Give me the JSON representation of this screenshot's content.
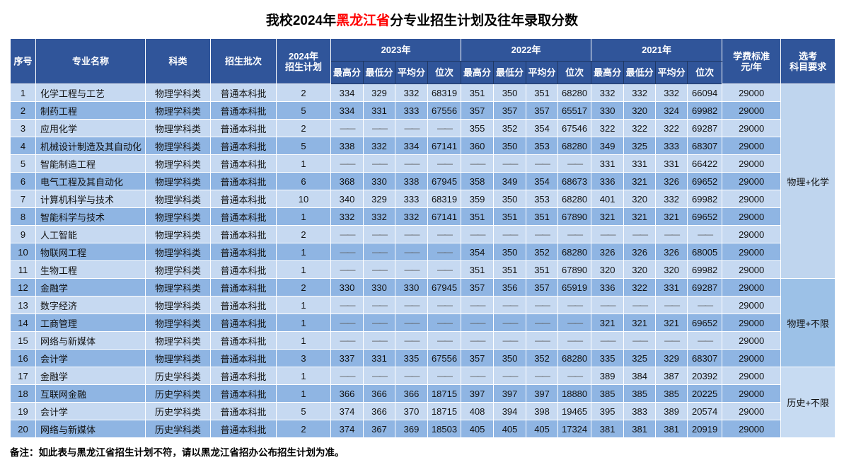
{
  "title": {
    "prefix": "我校2024年",
    "highlight": "黑龙江省",
    "suffix": "分专业招生计划及往年录取分数"
  },
  "header": {
    "seq": "序号",
    "major": "专业名称",
    "category": "科类",
    "batch": "招生批次",
    "plan_line1": "2024年",
    "plan_line2": "招生计划",
    "years": [
      "2023年",
      "2022年",
      "2021年"
    ],
    "sub_labels": [
      "最高分",
      "最低分",
      "平均分",
      "位次"
    ],
    "tuition_line1": "学费标准",
    "tuition_line2": "元/年",
    "subjects_line1": "选考",
    "subjects_line2": "科目要求"
  },
  "subject_groups": [
    {
      "label": "物理+化学",
      "span": 11
    },
    {
      "label": "物理+不限",
      "span": 5
    },
    {
      "label": "历史+不限",
      "span": 4
    }
  ],
  "rows": [
    {
      "seq": "1",
      "major": "化学工程与工艺",
      "category": "物理学科类",
      "batch": "普通本科批",
      "plan": "2",
      "scores": [
        "334",
        "329",
        "332",
        "68319",
        "351",
        "350",
        "351",
        "68280",
        "332",
        "332",
        "332",
        "66094"
      ],
      "tuition": "29000"
    },
    {
      "seq": "2",
      "major": "制药工程",
      "category": "物理学科类",
      "batch": "普通本科批",
      "plan": "5",
      "scores": [
        "334",
        "331",
        "333",
        "67556",
        "357",
        "357",
        "357",
        "65517",
        "330",
        "320",
        "324",
        "69982"
      ],
      "tuition": "29000"
    },
    {
      "seq": "3",
      "major": "应用化学",
      "category": "物理学科类",
      "batch": "普通本科批",
      "plan": "2",
      "scores": [
        "——",
        "——",
        "——",
        "——",
        "355",
        "352",
        "354",
        "67546",
        "322",
        "322",
        "322",
        "69287"
      ],
      "tuition": "29000"
    },
    {
      "seq": "4",
      "major": "机械设计制造及其自动化",
      "category": "物理学科类",
      "batch": "普通本科批",
      "plan": "5",
      "scores": [
        "338",
        "332",
        "334",
        "67141",
        "360",
        "350",
        "353",
        "68280",
        "349",
        "325",
        "333",
        "68307"
      ],
      "tuition": "29000"
    },
    {
      "seq": "5",
      "major": "智能制造工程",
      "category": "物理学科类",
      "batch": "普通本科批",
      "plan": "1",
      "scores": [
        "——",
        "——",
        "——",
        "——",
        "——",
        "——",
        "——",
        "——",
        "331",
        "331",
        "331",
        "66422"
      ],
      "tuition": "29000"
    },
    {
      "seq": "6",
      "major": "电气工程及其自动化",
      "category": "物理学科类",
      "batch": "普通本科批",
      "plan": "6",
      "scores": [
        "368",
        "330",
        "338",
        "67945",
        "358",
        "349",
        "354",
        "68673",
        "336",
        "321",
        "326",
        "69652"
      ],
      "tuition": "29000"
    },
    {
      "seq": "7",
      "major": "计算机科学与技术",
      "category": "物理学科类",
      "batch": "普通本科批",
      "plan": "10",
      "scores": [
        "340",
        "329",
        "333",
        "68319",
        "359",
        "350",
        "353",
        "68280",
        "401",
        "320",
        "332",
        "69982"
      ],
      "tuition": "29000"
    },
    {
      "seq": "8",
      "major": "智能科学与技术",
      "category": "物理学科类",
      "batch": "普通本科批",
      "plan": "1",
      "scores": [
        "332",
        "332",
        "332",
        "67141",
        "351",
        "351",
        "351",
        "67890",
        "321",
        "321",
        "321",
        "69652"
      ],
      "tuition": "29000"
    },
    {
      "seq": "9",
      "major": "人工智能",
      "category": "物理学科类",
      "batch": "普通本科批",
      "plan": "2",
      "scores": [
        "——",
        "——",
        "——",
        "——",
        "——",
        "——",
        "——",
        "——",
        "——",
        "——",
        "——",
        "——"
      ],
      "tuition": "29000"
    },
    {
      "seq": "10",
      "major": "物联网工程",
      "category": "物理学科类",
      "batch": "普通本科批",
      "plan": "1",
      "scores": [
        "——",
        "——",
        "——",
        "——",
        "354",
        "350",
        "352",
        "68280",
        "326",
        "326",
        "326",
        "68005"
      ],
      "tuition": "29000"
    },
    {
      "seq": "11",
      "major": "生物工程",
      "category": "物理学科类",
      "batch": "普通本科批",
      "plan": "1",
      "scores": [
        "——",
        "——",
        "——",
        "——",
        "351",
        "351",
        "351",
        "67890",
        "320",
        "320",
        "320",
        "69982"
      ],
      "tuition": "29000"
    },
    {
      "seq": "12",
      "major": "金融学",
      "category": "物理学科类",
      "batch": "普通本科批",
      "plan": "2",
      "scores": [
        "330",
        "330",
        "330",
        "67945",
        "357",
        "356",
        "357",
        "65919",
        "336",
        "322",
        "331",
        "69287"
      ],
      "tuition": "29000"
    },
    {
      "seq": "13",
      "major": "数字经济",
      "category": "物理学科类",
      "batch": "普通本科批",
      "plan": "1",
      "scores": [
        "——",
        "——",
        "——",
        "——",
        "——",
        "——",
        "——",
        "——",
        "——",
        "——",
        "——",
        "——"
      ],
      "tuition": "29000"
    },
    {
      "seq": "14",
      "major": "工商管理",
      "category": "物理学科类",
      "batch": "普通本科批",
      "plan": "1",
      "scores": [
        "——",
        "——",
        "——",
        "——",
        "——",
        "——",
        "——",
        "——",
        "321",
        "321",
        "321",
        "69652"
      ],
      "tuition": "29000"
    },
    {
      "seq": "15",
      "major": "网络与新媒体",
      "category": "物理学科类",
      "batch": "普通本科批",
      "plan": "1",
      "scores": [
        "——",
        "——",
        "——",
        "——",
        "——",
        "——",
        "——",
        "——",
        "——",
        "——",
        "——",
        "——"
      ],
      "tuition": "29000"
    },
    {
      "seq": "16",
      "major": "会计学",
      "category": "物理学科类",
      "batch": "普通本科批",
      "plan": "3",
      "scores": [
        "337",
        "331",
        "335",
        "67556",
        "357",
        "350",
        "352",
        "68280",
        "335",
        "325",
        "329",
        "68307"
      ],
      "tuition": "29000"
    },
    {
      "seq": "17",
      "major": "金融学",
      "category": "历史学科类",
      "batch": "普通本科批",
      "plan": "1",
      "scores": [
        "——",
        "——",
        "——",
        "——",
        "——",
        "——",
        "——",
        "——",
        "389",
        "384",
        "387",
        "20392"
      ],
      "tuition": "29000"
    },
    {
      "seq": "18",
      "major": "互联网金融",
      "category": "历史学科类",
      "batch": "普通本科批",
      "plan": "1",
      "scores": [
        "366",
        "366",
        "366",
        "18715",
        "397",
        "397",
        "397",
        "18880",
        "385",
        "385",
        "385",
        "20225"
      ],
      "tuition": "29000"
    },
    {
      "seq": "19",
      "major": "会计学",
      "category": "历史学科类",
      "batch": "普通本科批",
      "plan": "5",
      "scores": [
        "374",
        "366",
        "370",
        "18715",
        "408",
        "394",
        "398",
        "19465",
        "395",
        "383",
        "389",
        "20574"
      ],
      "tuition": "29000"
    },
    {
      "seq": "20",
      "major": "网络与新媒体",
      "category": "历史学科类",
      "batch": "普通本科批",
      "plan": "2",
      "scores": [
        "374",
        "367",
        "369",
        "18503",
        "405",
        "405",
        "405",
        "17324",
        "381",
        "381",
        "381",
        "20919"
      ],
      "tuition": "29000"
    }
  ],
  "note": "备注：如此表与黑龙江省招生计划不符，请以黑龙江省招办公布招生计划为准。",
  "dash": "——",
  "colors": {
    "header_bg": "#30559A",
    "header_line": "#1F3864",
    "row_light": "#C6D9F1",
    "row_dark": "#8FB5E3",
    "subject_light": "#BFD5EE",
    "subject_dark": "#9CC1E7",
    "subject_light2": "#C7DBF2",
    "title_red": "#FF0000",
    "dash": "#595959"
  }
}
